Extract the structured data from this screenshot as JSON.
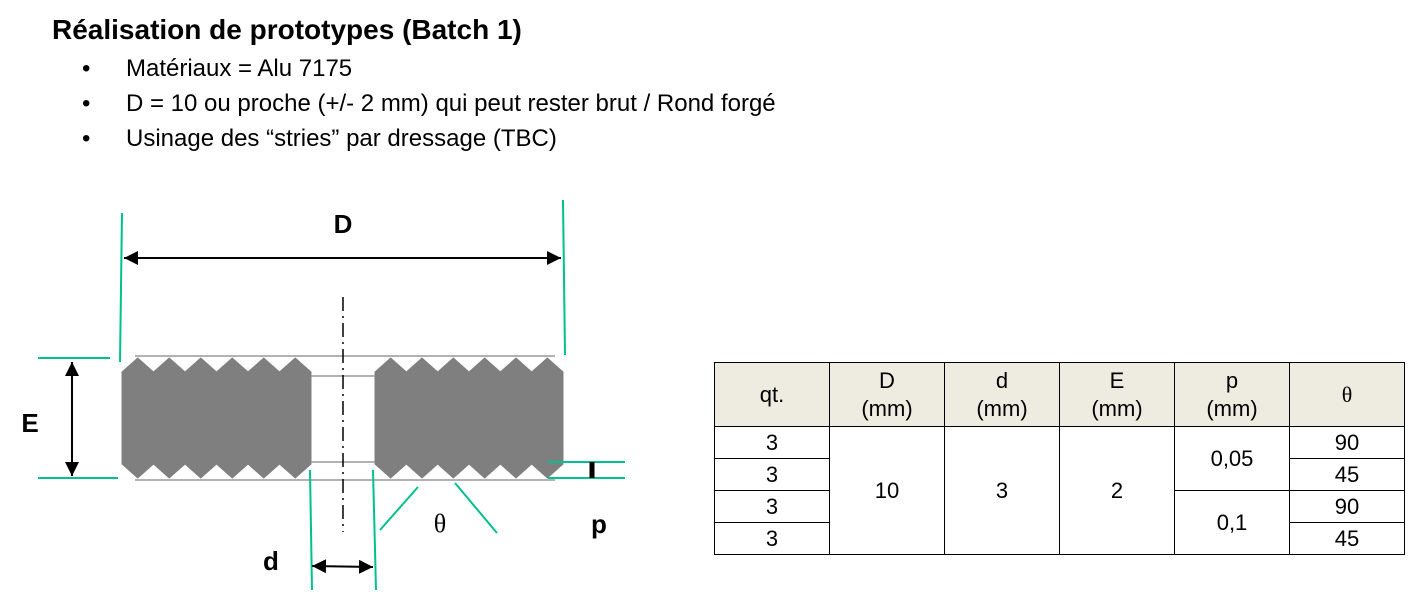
{
  "header": {
    "title": "Réalisation de prototypes (Batch 1)"
  },
  "bullets": [
    "Matériaux  = Alu 7175",
    "D = 10 ou proche (+/- 2 mm) qui peut rester brut / Rond forgé",
    "Usinage des “stries” par dressage (TBC)"
  ],
  "diagram": {
    "labels": {
      "D": "D",
      "E": "E",
      "d": "d",
      "theta": "θ",
      "p": "p"
    }
  },
  "table": {
    "columns": [
      {
        "header": "qt."
      },
      {
        "header": "D",
        "unit": "(mm)"
      },
      {
        "header": "d",
        "unit": "(mm)"
      },
      {
        "header": "E",
        "unit": "(mm)"
      },
      {
        "header": "p",
        "unit": "(mm)"
      },
      {
        "header": "θ"
      }
    ],
    "qt": [
      3,
      3,
      3,
      3
    ],
    "D": [
      10
    ],
    "d": [
      3
    ],
    "E": [
      2
    ],
    "p": [
      "0,05",
      "0,1"
    ],
    "theta": [
      90,
      45,
      90,
      45
    ]
  }
}
